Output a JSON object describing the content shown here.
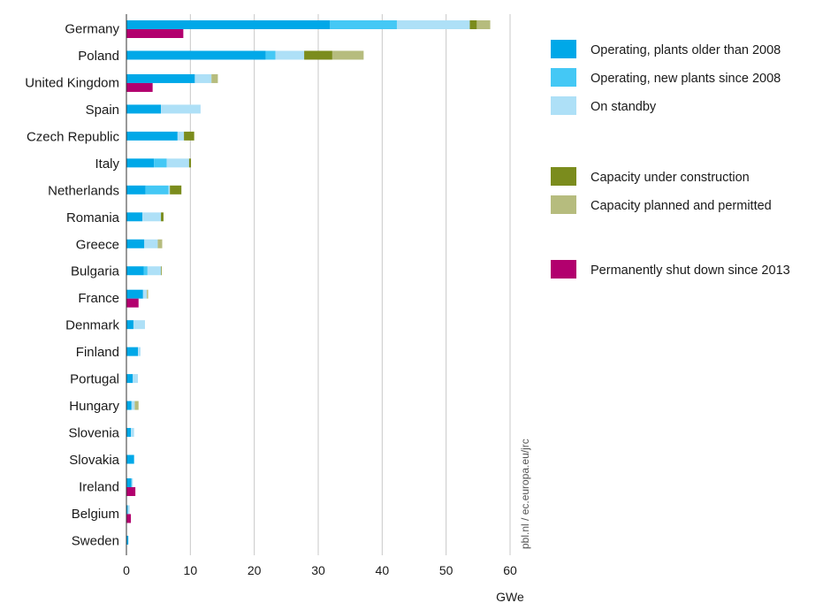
{
  "chart_data": {
    "type": "bar",
    "orientation": "horizontal",
    "stacked": true,
    "xlabel": "GWe",
    "xlim": [
      0,
      60
    ],
    "xticks": [
      "0",
      "10",
      "20",
      "30",
      "40",
      "50",
      "60"
    ],
    "grid": "vertical",
    "legend_position": "top-right",
    "source_note": "pbl.nl / ec.europa.eu/jrc",
    "categories": [
      "Germany",
      "Poland",
      "United Kingdom",
      "Spain",
      "Czech Republic",
      "Italy",
      "Netherlands",
      "Romania",
      "Greece",
      "Bulgaria",
      "France",
      "Denmark",
      "Finland",
      "Portugal",
      "Hungary",
      "Slovenia",
      "Slovakia",
      "Ireland",
      "Belgium",
      "Sweden"
    ],
    "series": [
      {
        "name": "Operating, plants older than 2008",
        "color": "#00a8e8",
        "stack": "main",
        "values": [
          31.8,
          21.8,
          10.7,
          5.4,
          8.0,
          4.3,
          3.0,
          2.5,
          2.8,
          2.7,
          2.6,
          1.1,
          1.8,
          1.0,
          0.8,
          0.7,
          1.2,
          0.8,
          0.2,
          0.3
        ]
      },
      {
        "name": "Operating, new plants since 2008",
        "color": "#44c8f5",
        "stack": "main",
        "values": [
          10.5,
          1.5,
          0.0,
          0.0,
          0.0,
          2.0,
          3.6,
          0.0,
          0.0,
          0.6,
          0.0,
          0.0,
          0.0,
          0.0,
          0.0,
          0.0,
          0.0,
          0.0,
          0.0,
          0.0
        ]
      },
      {
        "name": "On standby",
        "color": "#aee0f7",
        "stack": "main",
        "values": [
          11.4,
          4.5,
          2.6,
          6.2,
          1.0,
          3.5,
          0.2,
          2.9,
          2.1,
          2.1,
          0.6,
          1.8,
          0.4,
          0.8,
          0.5,
          0.5,
          0.0,
          0.2,
          0.3,
          0.0
        ]
      },
      {
        "name": "Capacity under construction",
        "color": "#7b8c1d",
        "stack": "main",
        "values": [
          1.1,
          4.4,
          0.0,
          0.0,
          1.6,
          0.3,
          1.8,
          0.4,
          0.0,
          0.1,
          0.0,
          0.0,
          0.0,
          0.0,
          0.0,
          0.0,
          0.0,
          0.0,
          0.0,
          0.0
        ]
      },
      {
        "name": "Capacity planned and permitted",
        "color": "#b6bc7e",
        "stack": "main",
        "values": [
          2.1,
          4.9,
          1.0,
          0.0,
          0.0,
          0.0,
          0.0,
          0.0,
          0.7,
          0.0,
          0.2,
          0.0,
          0.0,
          0.0,
          0.6,
          0.0,
          0.0,
          0.0,
          0.0,
          0.0
        ]
      },
      {
        "name": "Permanently shut down since 2013",
        "color": "#b2006e",
        "stack": "shutdown",
        "values": [
          8.9,
          0.0,
          4.1,
          0.0,
          0.0,
          0.0,
          0.0,
          0.0,
          0.0,
          0.0,
          1.9,
          0.0,
          0.0,
          0.0,
          0.0,
          0.0,
          0.0,
          1.4,
          0.7,
          0.0
        ]
      }
    ],
    "legend": [
      {
        "label": "Operating, plants older than 2008",
        "color": "#00a8e8"
      },
      {
        "label": "Operating, new plants since 2008",
        "color": "#44c8f5"
      },
      {
        "label": "On standby",
        "color": "#aee0f7"
      },
      {
        "label": "Capacity under construction",
        "color": "#7b8c1d"
      },
      {
        "label": "Capacity planned and permitted",
        "color": "#b6bc7e"
      },
      {
        "label": "Permanently shut down since 2013",
        "color": "#b2006e"
      }
    ]
  }
}
